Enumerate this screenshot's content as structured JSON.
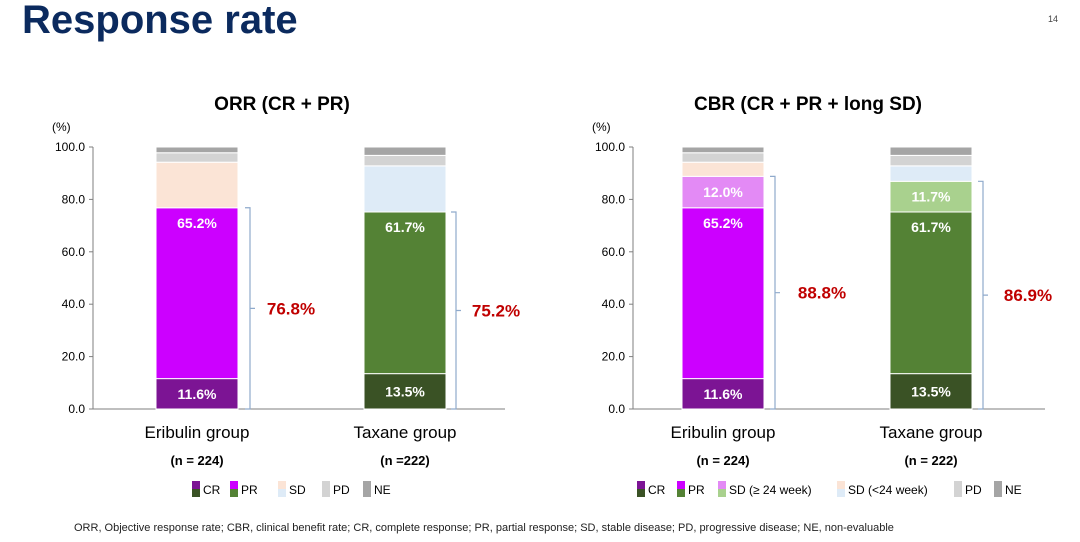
{
  "page": {
    "title": "Response rate",
    "page_number": "14",
    "footnote": "ORR, Objective response rate; CBR, clinical benefit rate; CR, complete response; PR, partial response; SD, stable disease; PD, progressive disease; NE, non-evaluable"
  },
  "chart_data": [
    {
      "type": "bar",
      "stacked": true,
      "title": "ORR (CR + PR)",
      "ylabel": "(%)",
      "ylim": [
        0,
        100
      ],
      "yticks": [
        "0.0",
        "20.0",
        "40.0",
        "60.0",
        "80.0",
        "100.0"
      ],
      "categories": [
        "Eribulin group",
        "Taxane group"
      ],
      "category_n": [
        "(n = 224)",
        "(n =222)"
      ],
      "series": [
        {
          "name": "CR",
          "values": [
            11.6,
            13.5
          ],
          "colors": [
            "#7c1494",
            "#3a5225"
          ]
        },
        {
          "name": "PR",
          "values": [
            65.2,
            61.7
          ],
          "colors": [
            "#cc00ff",
            "#548235"
          ]
        },
        {
          "name": "SD",
          "values": [
            17.4,
            17.6
          ],
          "colors": [
            "#fbe4d6",
            "#deebf7"
          ]
        },
        {
          "name": "PD",
          "values": [
            3.6,
            4.0
          ],
          "colors": [
            "#d3d3d3",
            "#d3d3d3"
          ]
        },
        {
          "name": "NE",
          "values": [
            2.2,
            3.2
          ],
          "colors": [
            "#a5a5a5",
            "#a5a5a5"
          ]
        }
      ],
      "segment_labels": [
        {
          "bar": 0,
          "series": 0,
          "text": "11.6%"
        },
        {
          "bar": 0,
          "series": 1,
          "text": "65.2%"
        },
        {
          "bar": 1,
          "series": 0,
          "text": "13.5%"
        },
        {
          "bar": 1,
          "series": 1,
          "text": "61.7%"
        }
      ],
      "brackets": [
        {
          "bar": 0,
          "from": 0,
          "to": 76.8,
          "text": "76.8%"
        },
        {
          "bar": 1,
          "from": 0,
          "to": 75.2,
          "text": "75.2%"
        }
      ],
      "legend": [
        {
          "label": "CR",
          "colors": [
            "#7c1494",
            "#3a5225"
          ]
        },
        {
          "label": "PR",
          "colors": [
            "#cc00ff",
            "#548235"
          ]
        },
        {
          "label": "SD",
          "colors": [
            "#fbe4d6",
            "#deebf7"
          ]
        },
        {
          "label": "PD",
          "colors": [
            "#d3d3d3",
            "#d3d3d3"
          ]
        },
        {
          "label": "NE",
          "colors": [
            "#a5a5a5",
            "#a5a5a5"
          ]
        }
      ]
    },
    {
      "type": "bar",
      "stacked": true,
      "title": "CBR (CR + PR + long SD)",
      "ylabel": "(%)",
      "ylim": [
        0,
        100
      ],
      "yticks": [
        "0.0",
        "20.0",
        "40.0",
        "60.0",
        "80.0",
        "100.0"
      ],
      "categories": [
        "Eribulin group",
        "Taxane group"
      ],
      "category_n": [
        "(n = 224)",
        "(n = 222)"
      ],
      "series": [
        {
          "name": "CR",
          "values": [
            11.6,
            13.5
          ],
          "colors": [
            "#7c1494",
            "#3a5225"
          ]
        },
        {
          "name": "PR",
          "values": [
            65.2,
            61.7
          ],
          "colors": [
            "#cc00ff",
            "#548235"
          ]
        },
        {
          "name": "SD (≥ 24 week)",
          "values": [
            12.0,
            11.7
          ],
          "colors": [
            "#e38af5",
            "#a9d18e"
          ]
        },
        {
          "name": "SD (<24 week)",
          "values": [
            5.4,
            5.9
          ],
          "colors": [
            "#fbe4d6",
            "#deebf7"
          ]
        },
        {
          "name": "PD",
          "values": [
            3.6,
            4.0
          ],
          "colors": [
            "#d3d3d3",
            "#d3d3d3"
          ]
        },
        {
          "name": "NE",
          "values": [
            2.2,
            3.2
          ],
          "colors": [
            "#a5a5a5",
            "#a5a5a5"
          ]
        }
      ],
      "segment_labels": [
        {
          "bar": 0,
          "series": 0,
          "text": "11.6%"
        },
        {
          "bar": 0,
          "series": 1,
          "text": "65.2%"
        },
        {
          "bar": 0,
          "series": 2,
          "text": "12.0%"
        },
        {
          "bar": 1,
          "series": 0,
          "text": "13.5%"
        },
        {
          "bar": 1,
          "series": 1,
          "text": "61.7%"
        },
        {
          "bar": 1,
          "series": 2,
          "text": "11.7%"
        }
      ],
      "brackets": [
        {
          "bar": 0,
          "from": 0,
          "to": 88.8,
          "text": "88.8%"
        },
        {
          "bar": 1,
          "from": 0,
          "to": 86.9,
          "text": "86.9%"
        }
      ],
      "legend": [
        {
          "label": "CR",
          "colors": [
            "#7c1494",
            "#3a5225"
          ]
        },
        {
          "label": "PR",
          "colors": [
            "#cc00ff",
            "#548235"
          ]
        },
        {
          "label": "SD (≥ 24 week)",
          "colors": [
            "#e38af5",
            "#a9d18e"
          ]
        },
        {
          "label": "SD (<24 week)",
          "colors": [
            "#fbe4d6",
            "#deebf7"
          ]
        },
        {
          "label": "PD",
          "colors": [
            "#d3d3d3",
            "#d3d3d3"
          ]
        },
        {
          "label": "NE",
          "colors": [
            "#a5a5a5",
            "#a5a5a5"
          ]
        }
      ]
    }
  ]
}
